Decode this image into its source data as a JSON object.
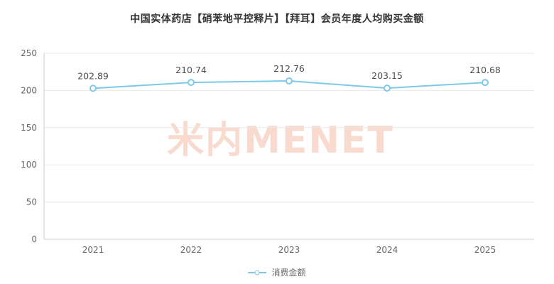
{
  "title": "中国实体药店【硝苯地平控释片】【拜耳】会员年度人均购买金额",
  "watermark": "米内MENET",
  "legend": {
    "label": "消费金额"
  },
  "colors": {
    "line": "#7ec9e8",
    "marker_fill": "#ffffff",
    "grid": "#e8e8e8",
    "axis": "#cccccc",
    "tick_label": "#666666",
    "data_label": "#4d4d4d",
    "title": "#333333",
    "watermark": "#f7d4c6"
  },
  "chart_data": {
    "type": "line",
    "title": "中国实体药店【硝苯地平控释片】【拜耳】会员年度人均购买金额",
    "categories": [
      "2021",
      "2022",
      "2023",
      "2024",
      "2025"
    ],
    "series": [
      {
        "name": "消费金额",
        "values": [
          202.89,
          210.74,
          212.76,
          203.15,
          210.68
        ]
      }
    ],
    "xlabel": "",
    "ylabel": "",
    "ylim": [
      0,
      250
    ],
    "yticks": [
      0,
      50,
      100,
      150,
      200,
      250
    ],
    "grid": true,
    "legend_position": "bottom",
    "data_labels": true
  }
}
